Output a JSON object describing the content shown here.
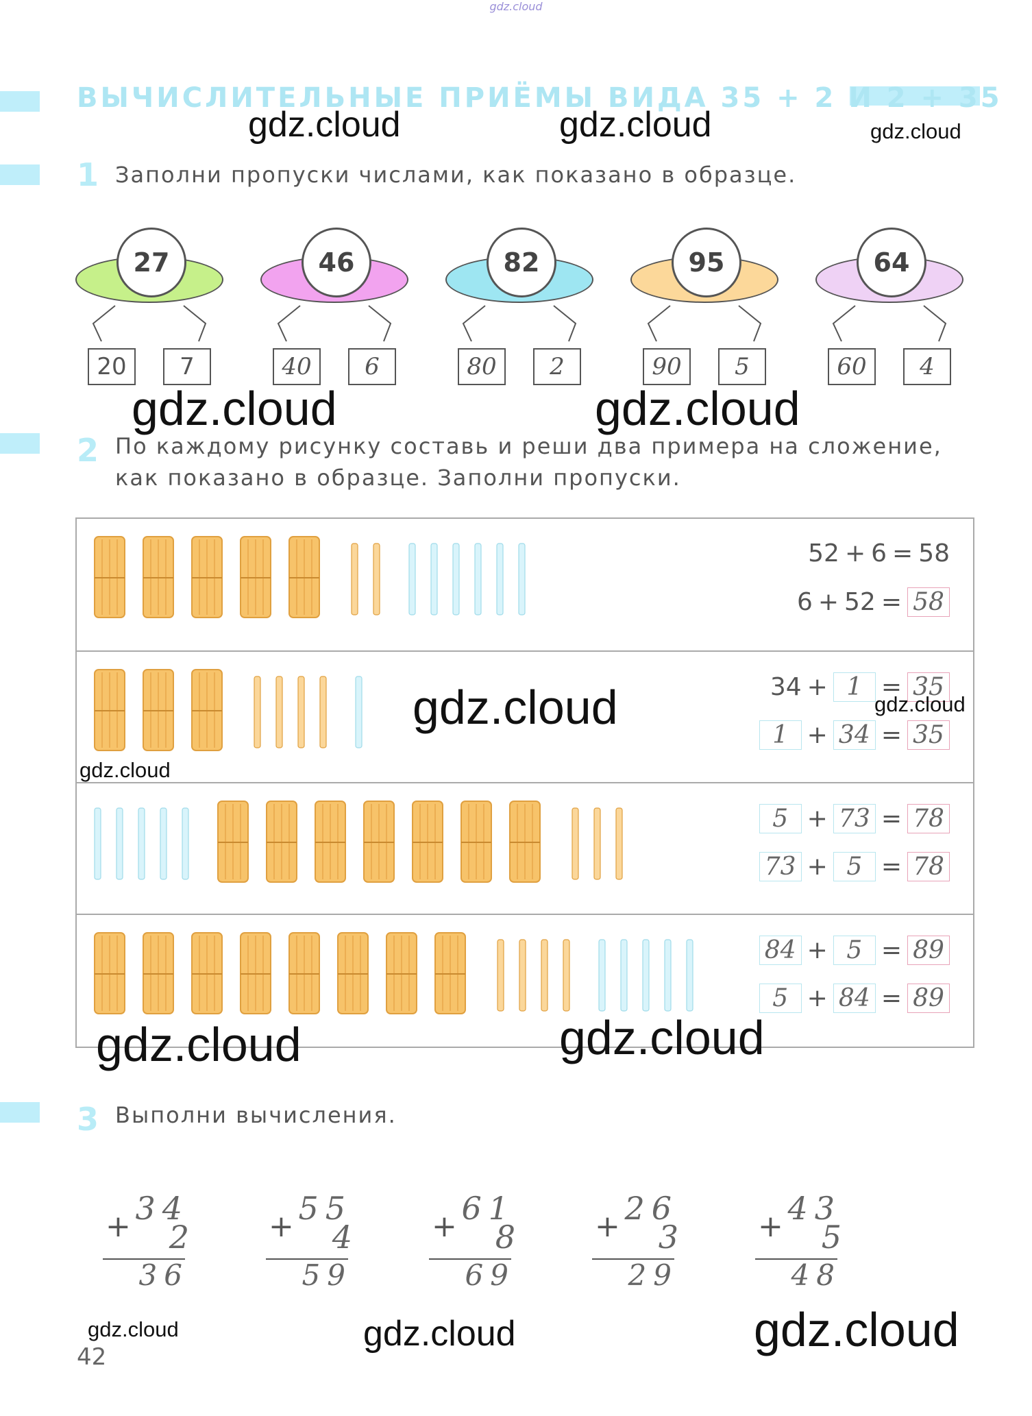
{
  "top_watermark": "gdz.cloud",
  "title": "ВЫЧИСЛИТЕЛЬНЫЕ ПРИЁМЫ ВИДА 35 + 2 И 2 + 35",
  "task1": {
    "number": "1",
    "text": "Заполни пропуски числами, как показано в образце.",
    "items": [
      {
        "total": "27",
        "left": "20",
        "right": "7",
        "color": "#c6f08a"
      },
      {
        "total": "46",
        "left": "40",
        "right": "6",
        "color": "#f2a3ef"
      },
      {
        "total": "82",
        "left": "80",
        "right": "2",
        "color": "#9ee6f2"
      },
      {
        "total": "95",
        "left": "90",
        "right": "5",
        "color": "#fcd89a"
      },
      {
        "total": "64",
        "left": "60",
        "right": "4",
        "color": "#efd2f5"
      }
    ]
  },
  "task2": {
    "number": "2",
    "text_line1": "По каждому рисунку составь и реши два примера на сложение,",
    "text_line2": "как показано в образце. Заполни пропуски.",
    "rows": [
      {
        "eq1": [
          "52",
          "+",
          "6",
          "=",
          "58"
        ],
        "eq2": [
          "6",
          "+",
          "52",
          "=",
          "58"
        ],
        "bundles": 5,
        "orange_sticks": 2,
        "blue_sticks": 6
      },
      {
        "eq1": [
          "34",
          "+",
          "1",
          "=",
          "35"
        ],
        "eq2": [
          "1",
          "+",
          "34",
          "=",
          "35"
        ],
        "bundles": 3,
        "orange_sticks": 4,
        "blue_sticks": 1
      },
      {
        "eq1": [
          "5",
          "+",
          "73",
          "=",
          "78"
        ],
        "eq2": [
          "73",
          "+",
          "5",
          "=",
          "78"
        ],
        "bundles": 7,
        "orange_sticks": 3,
        "blue_sticks": 5
      },
      {
        "eq1": [
          "84",
          "+",
          "5",
          "=",
          "89"
        ],
        "eq2": [
          "5",
          "+",
          "84",
          "=",
          "89"
        ],
        "bundles": 8,
        "orange_sticks": 4,
        "blue_sticks": 5
      }
    ]
  },
  "task3": {
    "number": "3",
    "text": "Выполни вычисления.",
    "columns": [
      {
        "a": "34",
        "b": "2",
        "sum": "36"
      },
      {
        "a": "55",
        "b": "4",
        "sum": "59"
      },
      {
        "a": "61",
        "b": "8",
        "sum": "69"
      },
      {
        "a": "26",
        "b": "3",
        "sum": "29"
      },
      {
        "a": "43",
        "b": "5",
        "sum": "48"
      }
    ],
    "plus_sign": "+"
  },
  "page_number": "42",
  "watermarks": [
    "gdz.cloud",
    "gdz.cloud",
    "gdz.cloud",
    "gdz.cloud",
    "gdz.cloud",
    "gdz.cloud",
    "gdz.cloud",
    "gdz.cloud",
    "gdz.cloud",
    "gdz.cloud",
    "gdz.cloud",
    "gdz.cloud",
    "gdz.cloud",
    "gdz.cloud"
  ]
}
